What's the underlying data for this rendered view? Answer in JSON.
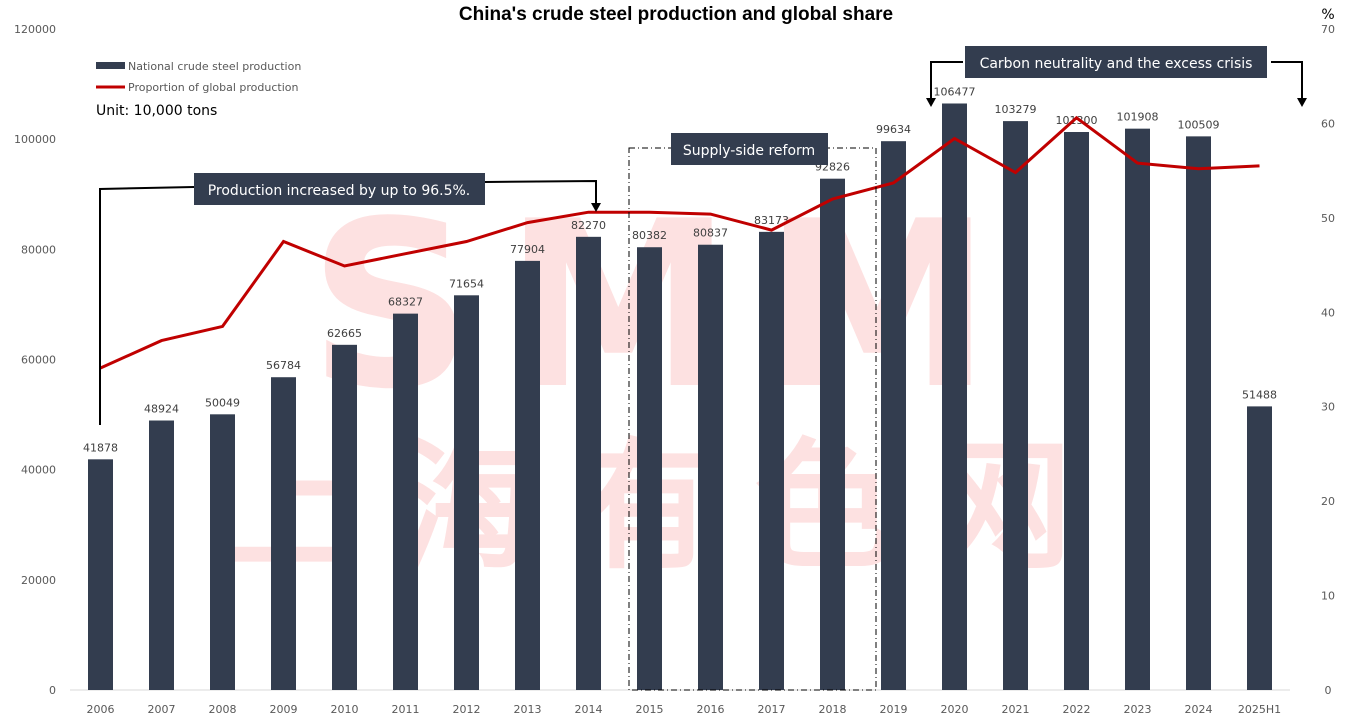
{
  "chart_data": {
    "type": "bar",
    "title": "China's crude steel production and global share",
    "unit_label": "Unit: 10,000 tons",
    "right_axis_unit": "%",
    "categories": [
      "2006",
      "2007",
      "2008",
      "2009",
      "2010",
      "2011",
      "2012",
      "2013",
      "2014",
      "2015",
      "2016",
      "2017",
      "2018",
      "2019",
      "2020",
      "2021",
      "2022",
      "2023",
      "2024",
      "2025H1"
    ],
    "series": [
      {
        "name": "National crude steel production",
        "type": "bar",
        "axis": "left",
        "color": "#333d4f",
        "values": [
          41878,
          48924,
          50049,
          56784,
          62665,
          68327,
          71654,
          77904,
          82270,
          80382,
          80837,
          83173,
          92826,
          99634,
          106477,
          103279,
          101300,
          101908,
          100509,
          51488
        ],
        "labels": [
          "41878",
          "48924",
          "50049",
          "56784",
          "62665",
          "68327",
          "71654",
          "77904",
          "82270",
          "80382",
          "80837",
          "83173",
          "92826",
          "99634",
          "106477",
          "103279",
          "101300",
          "101908",
          "100509",
          "51488"
        ]
      },
      {
        "name": "Proportion of global production",
        "type": "line",
        "axis": "right",
        "color": "#c00000",
        "values": [
          34.1,
          37.0,
          38.5,
          47.5,
          44.9,
          46.2,
          47.5,
          49.5,
          50.6,
          50.6,
          50.4,
          48.7,
          52.0,
          53.7,
          58.4,
          54.8,
          60.6,
          55.8,
          55.2,
          55.5
        ]
      }
    ],
    "y_left": {
      "range": [
        0,
        120000
      ],
      "ticks": [
        "0",
        "20000",
        "40000",
        "60000",
        "80000",
        "100000",
        "120000"
      ]
    },
    "y_right": {
      "range": [
        0,
        70
      ],
      "ticks": [
        "0",
        "10",
        "20",
        "30",
        "40",
        "50",
        "60",
        "70"
      ]
    },
    "grid": false,
    "legend_position": "top-left",
    "annotations": [
      {
        "id": "growth",
        "text": "Production increased by up to 96.5%.",
        "from": "2006",
        "to": "2014"
      },
      {
        "id": "reform",
        "text": "Supply-side reform",
        "span": [
          "2015",
          "2018"
        ]
      },
      {
        "id": "carbon",
        "text": "Carbon neutrality and the excess crisis",
        "from": "2019",
        "to": "2025H1"
      }
    ],
    "watermark": {
      "top": "SMM",
      "bottom": "上海有色网",
      "color": "#fde1e1"
    }
  }
}
